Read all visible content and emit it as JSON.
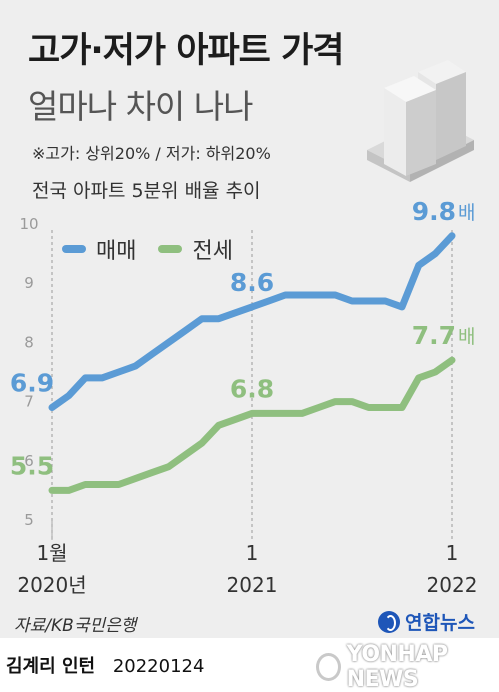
{
  "header": {
    "title": "고가·저가 아파트 가격",
    "subtitle": "얼마나 차이 나나",
    "note": "※고가: 상위20% / 저가: 하위20%"
  },
  "chart_data": {
    "type": "line",
    "title": "전국 아파트 5분위 배율 추이",
    "ylim": [
      5,
      10
    ],
    "y_ticks": [
      "5",
      "6",
      "7",
      "8",
      "9",
      "10"
    ],
    "x_ticks": [
      {
        "month": 0,
        "top": "1월",
        "bottom": "2020년"
      },
      {
        "month": 12,
        "top": "1",
        "bottom": "2021"
      },
      {
        "month": 24,
        "top": "1",
        "bottom": "2022"
      }
    ],
    "grid": false,
    "legend": "top-left",
    "series": [
      {
        "name": "매매",
        "color": "#5b9bd5",
        "values": [
          6.9,
          7.1,
          7.4,
          7.4,
          7.5,
          7.6,
          7.8,
          8.0,
          8.2,
          8.4,
          8.4,
          8.5,
          8.6,
          8.7,
          8.8,
          8.8,
          8.8,
          8.8,
          8.7,
          8.7,
          8.7,
          8.6,
          9.3,
          9.5,
          9.8
        ],
        "labels": [
          {
            "month": 0,
            "text": "6.9"
          },
          {
            "month": 12,
            "text": "8.6"
          },
          {
            "month": 24,
            "text": "9.8",
            "suffix": "배"
          }
        ]
      },
      {
        "name": "전세",
        "color": "#8fbf7f",
        "values": [
          5.5,
          5.5,
          5.6,
          5.6,
          5.6,
          5.7,
          5.8,
          5.9,
          6.1,
          6.3,
          6.6,
          6.7,
          6.8,
          6.8,
          6.8,
          6.8,
          6.9,
          7.0,
          7.0,
          6.9,
          6.9,
          6.9,
          7.4,
          7.5,
          7.7
        ],
        "labels": [
          {
            "month": 0,
            "text": "5.5"
          },
          {
            "month": 12,
            "text": "6.8"
          },
          {
            "month": 24,
            "text": "7.7",
            "suffix": "배"
          }
        ]
      }
    ]
  },
  "footer": {
    "source": "자료/KB국민은행",
    "logo_text": "연합뉴스",
    "author": "김계리 인턴",
    "date": "20220124",
    "watermark": "YONHAP NEWS"
  }
}
